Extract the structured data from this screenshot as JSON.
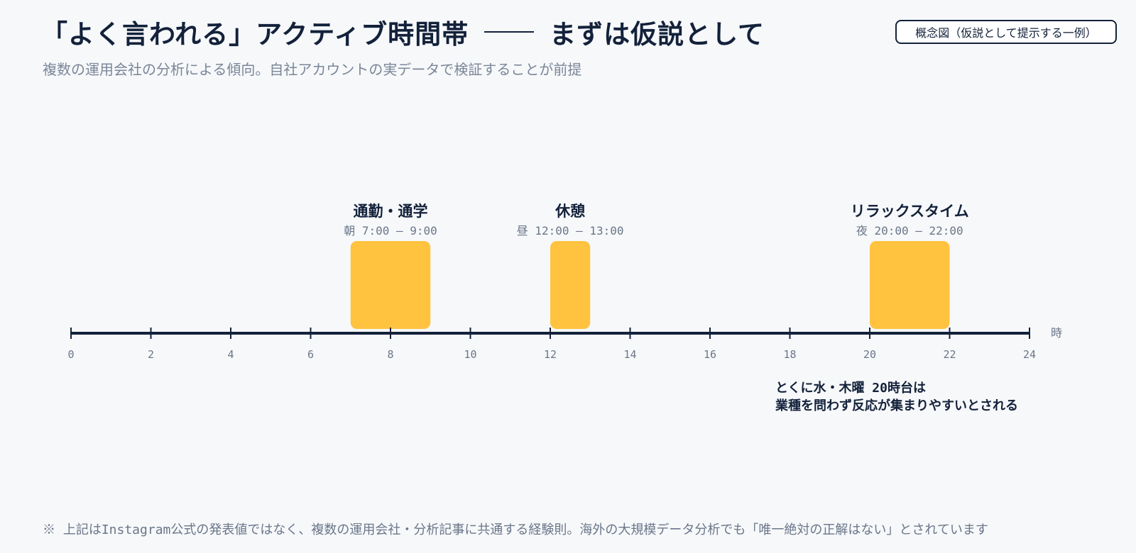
{
  "header": {
    "title_part1": "「よく言われる」アクティブ時間帯",
    "title_part2": "まずは仮説として",
    "subtitle": "複数の運用会社の分析による傾向。自社アカウントの実データで検証することが前提",
    "badge": "概念図（仮説として提示する一例）"
  },
  "colors": {
    "block": "#ffc340",
    "axis": "#13213a",
    "text_dark": "#13213a",
    "text_muted": "#6b7689",
    "background": "#f6f8fa"
  },
  "chart_data": {
    "type": "timeline",
    "x_range": [
      0,
      24
    ],
    "x_ticks": [
      0,
      2,
      4,
      6,
      8,
      10,
      12,
      14,
      16,
      18,
      20,
      22,
      24
    ],
    "x_unit": "時",
    "periods": [
      {
        "name": "通勤・通学",
        "time_label": "朝 7:00 – 9:00",
        "start": 7,
        "end": 9
      },
      {
        "name": "休憩",
        "time_label": "昼 12:00 – 13:00",
        "start": 12,
        "end": 13
      },
      {
        "name": "リラックスタイム",
        "time_label": "夜 20:00 – 22:00",
        "start": 20,
        "end": 22
      }
    ],
    "annotation": {
      "lines": [
        "とくに水・木曜 20時台は",
        "業種を問わず反応が集まりやすいとされる"
      ]
    }
  },
  "footnote": "※ 上記はInstagram公式の発表値ではなく、複数の運用会社・分析記事に共通する経験則。海外の大規模データ分析でも「唯一絶対の正解はない」とされています"
}
